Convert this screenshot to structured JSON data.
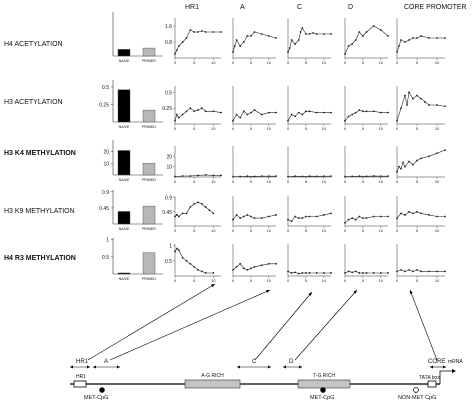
{
  "column_headers": [
    "HR1",
    "A",
    "C",
    "D",
    "CORE PROMOTER"
  ],
  "row_labels": [
    "H4 ACETYLATION",
    "H3 ACETYLATION",
    "H3 K4 METHYLATION",
    "H3 K9 METHYLATION",
    "H4 R3 METHYLATION"
  ],
  "row_label_bold": [
    false,
    false,
    true,
    false,
    true
  ],
  "bar_categories": [
    "NAIVE",
    "PRIMED"
  ],
  "colors": {
    "naive": "#000000",
    "primed": "#b8b8b8",
    "line": "#222222",
    "region": "#c4c4c4"
  },
  "chart_data": [
    {
      "type": "bar",
      "row": "H4 ACETYLATION",
      "categories": [
        "NAIVE",
        "PRIMED"
      ],
      "values": [
        0.15,
        0.18
      ],
      "ylim": [
        0,
        1.0
      ],
      "ytick_labels": []
    },
    {
      "type": "bar",
      "row": "H3 ACETYLATION",
      "categories": [
        "NAIVE",
        "PRIMED"
      ],
      "values": [
        0.46,
        0.17
      ],
      "ylim": [
        0,
        0.6
      ],
      "ytick_labels": [
        "0.5",
        "0.25"
      ],
      "yticks": [
        0.5,
        0.25
      ]
    },
    {
      "type": "bar",
      "row": "H3 K4 METHYLATION",
      "categories": [
        "NAIVE",
        "PRIMED"
      ],
      "values": [
        21,
        10
      ],
      "ylim": [
        0,
        30
      ],
      "ytick_labels": [
        "20",
        "10"
      ],
      "yticks": [
        20,
        10
      ]
    },
    {
      "type": "bar",
      "row": "H3 K9 METHYLATION",
      "categories": [
        "NAIVE",
        "PRIMED"
      ],
      "values": [
        0.35,
        0.5
      ],
      "ylim": [
        0,
        0.95
      ],
      "ytick_labels": [
        "0.9",
        "0.45"
      ],
      "yticks": [
        0.9,
        0.45
      ]
    },
    {
      "type": "bar",
      "row": "H4 R3 METHYLATION",
      "categories": [
        "NAIVE",
        "PRIMED"
      ],
      "values": [
        0.03,
        0.62
      ],
      "ylim": [
        0,
        1.05
      ],
      "ytick_labels": [
        "1",
        "0.5"
      ],
      "yticks": [
        1,
        0.5
      ]
    },
    {
      "type": "line",
      "row": "H4 ACETYLATION",
      "col": "HR1",
      "ylim": [
        0,
        2.0
      ],
      "ytick_labels": [
        "1.6",
        "0.8"
      ],
      "yticks": [
        1.6,
        0.8
      ],
      "x_ticks": [
        0,
        5,
        10
      ],
      "x": [
        0,
        0.5,
        1,
        2,
        3,
        4,
        5,
        6,
        7,
        8,
        10,
        12
      ],
      "y": [
        0.2,
        0.4,
        0.6,
        0.8,
        1.0,
        1.4,
        1.3,
        1.3,
        1.35,
        1.3,
        1.3,
        1.3
      ]
    },
    {
      "type": "line",
      "row": "H4 ACETYLATION",
      "col": "A",
      "ylim": [
        0,
        2.0
      ],
      "x_ticks": [
        0,
        5,
        10
      ],
      "x": [
        0,
        0.5,
        1,
        2,
        3,
        4,
        5,
        6,
        8,
        10,
        12
      ],
      "y": [
        0.3,
        0.6,
        0.9,
        0.6,
        0.8,
        1.1,
        1.1,
        1.3,
        1.2,
        1.1,
        1.0
      ]
    },
    {
      "type": "line",
      "row": "H4 ACETYLATION",
      "col": "C",
      "ylim": [
        0,
        2.0
      ],
      "x_ticks": [
        0,
        5,
        10
      ],
      "x": [
        0,
        0.5,
        1,
        2,
        3,
        3.5,
        4,
        5,
        6,
        7,
        8,
        10,
        12
      ],
      "y": [
        0.3,
        0.5,
        0.9,
        0.7,
        0.9,
        1.3,
        1.5,
        1.2,
        1.2,
        1.25,
        1.2,
        1.2,
        1.2
      ]
    },
    {
      "type": "line",
      "row": "H4 ACETYLATION",
      "col": "D",
      "ylim": [
        0,
        2.0
      ],
      "x_ticks": [
        0,
        5,
        10
      ],
      "x": [
        0,
        1,
        2,
        3,
        4,
        5,
        6,
        8,
        10,
        12
      ],
      "y": [
        0.2,
        0.6,
        0.7,
        0.9,
        1.3,
        1.1,
        1.3,
        1.6,
        1.4,
        1.1
      ]
    },
    {
      "type": "line",
      "row": "H4 ACETYLATION",
      "col": "CORE PROMOTER",
      "ylim": [
        0,
        2.0
      ],
      "x_ticks": [
        0,
        5,
        10
      ],
      "x": [
        0,
        0.5,
        1,
        2,
        3,
        4,
        5,
        6,
        8,
        10,
        12
      ],
      "y": [
        0.3,
        0.6,
        0.9,
        0.8,
        0.9,
        1.0,
        1.0,
        1.1,
        1.0,
        1.0,
        1.0
      ]
    },
    {
      "type": "line",
      "row": "H3 ACETYLATION",
      "col": "HR1",
      "ylim": [
        0,
        0.6
      ],
      "ytick_labels": [
        "0.5",
        "0.25"
      ],
      "yticks": [
        0.5,
        0.25
      ],
      "x_ticks": [
        0,
        5,
        10
      ],
      "x": [
        0,
        0.5,
        1,
        2,
        3,
        4,
        5,
        6,
        7,
        8,
        10,
        12
      ],
      "y": [
        0.05,
        0.15,
        0.1,
        0.15,
        0.2,
        0.25,
        0.2,
        0.22,
        0.25,
        0.2,
        0.2,
        0.18
      ]
    },
    {
      "type": "line",
      "row": "H3 ACETYLATION",
      "col": "A",
      "ylim": [
        0,
        0.6
      ],
      "x_ticks": [
        0,
        5,
        10
      ],
      "x": [
        0,
        1,
        2,
        3,
        4,
        5,
        6,
        8,
        10,
        12
      ],
      "y": [
        0.05,
        0.15,
        0.1,
        0.2,
        0.15,
        0.18,
        0.22,
        0.15,
        0.18,
        0.18
      ]
    },
    {
      "type": "line",
      "row": "H3 ACETYLATION",
      "col": "C",
      "ylim": [
        0,
        0.6
      ],
      "x_ticks": [
        0,
        5,
        10
      ],
      "x": [
        0,
        1,
        2,
        3,
        4,
        5,
        6,
        8,
        10,
        12
      ],
      "y": [
        0.05,
        0.15,
        0.12,
        0.18,
        0.15,
        0.2,
        0.2,
        0.18,
        0.18,
        0.18
      ]
    },
    {
      "type": "line",
      "row": "H3 ACETYLATION",
      "col": "D",
      "ylim": [
        0,
        0.6
      ],
      "x_ticks": [
        0,
        5,
        10
      ],
      "x": [
        0,
        1,
        2,
        3,
        4,
        5,
        6,
        8,
        10,
        12
      ],
      "y": [
        0.05,
        0.12,
        0.15,
        0.18,
        0.22,
        0.2,
        0.2,
        0.2,
        0.18,
        0.18
      ]
    },
    {
      "type": "line",
      "row": "H3 ACETYLATION",
      "col": "CORE PROMOTER",
      "ylim": [
        0,
        0.6
      ],
      "x_ticks": [
        0,
        5,
        10
      ],
      "x": [
        0,
        1,
        2,
        2.5,
        3,
        4,
        5,
        6,
        7,
        8,
        10,
        12
      ],
      "y": [
        0.05,
        0.25,
        0.45,
        0.3,
        0.5,
        0.4,
        0.45,
        0.4,
        0.35,
        0.3,
        0.3,
        0.28
      ]
    },
    {
      "type": "line",
      "row": "H3 K4 METHYLATION",
      "col": "HR1",
      "ylim": [
        0,
        30
      ],
      "ytick_labels": [
        "20",
        "10"
      ],
      "yticks": [
        20,
        10
      ],
      "x_ticks": [
        0,
        5,
        10
      ],
      "x": [
        0,
        2,
        4,
        6,
        8,
        10,
        12
      ],
      "y": [
        0.5,
        1,
        1,
        1.5,
        2,
        1.5,
        1.5
      ]
    },
    {
      "type": "line",
      "row": "H3 K4 METHYLATION",
      "col": "A",
      "ylim": [
        0,
        30
      ],
      "x_ticks": [
        0,
        5,
        10
      ],
      "x": [
        0,
        2,
        4,
        6,
        8,
        10,
        12
      ],
      "y": [
        0.5,
        0.5,
        0.8,
        0.6,
        0.8,
        0.8,
        0.8
      ]
    },
    {
      "type": "line",
      "row": "H3 K4 METHYLATION",
      "col": "C",
      "ylim": [
        0,
        30
      ],
      "x_ticks": [
        0,
        5,
        10
      ],
      "x": [
        0,
        2,
        4,
        6,
        8,
        10,
        12
      ],
      "y": [
        0.5,
        0.8,
        0.6,
        0.8,
        0.7,
        0.8,
        0.8
      ]
    },
    {
      "type": "line",
      "row": "H3 K4 METHYLATION",
      "col": "D",
      "ylim": [
        0,
        30
      ],
      "x_ticks": [
        0,
        5,
        10
      ],
      "x": [
        0,
        2,
        4,
        6,
        8,
        10,
        12
      ],
      "y": [
        0.5,
        0.6,
        0.8,
        0.7,
        0.9,
        0.8,
        0.8
      ]
    },
    {
      "type": "line",
      "row": "H3 K4 METHYLATION",
      "col": "CORE PROMOTER",
      "ylim": [
        0,
        30
      ],
      "x_ticks": [
        0,
        5,
        10
      ],
      "x": [
        0,
        0.5,
        1,
        1.5,
        2,
        3,
        4,
        5,
        6,
        8,
        10,
        12
      ],
      "y": [
        5,
        10,
        8,
        14,
        10,
        15,
        12,
        16,
        18,
        20,
        23,
        26
      ]
    },
    {
      "type": "line",
      "row": "H3 K9 METHYLATION",
      "col": "HR1",
      "ylim": [
        0,
        0.95
      ],
      "ytick_labels": [
        "0.9",
        "0.45"
      ],
      "yticks": [
        0.9,
        0.45
      ],
      "x_ticks": [
        0,
        5,
        10
      ],
      "x": [
        0,
        0.5,
        1,
        2,
        3,
        4,
        5,
        6,
        7,
        8,
        9,
        10
      ],
      "y": [
        0.3,
        0.35,
        0.3,
        0.4,
        0.4,
        0.6,
        0.7,
        0.75,
        0.7,
        0.6,
        0.5,
        0.4
      ]
    },
    {
      "type": "line",
      "row": "H3 K9 METHYLATION",
      "col": "A",
      "ylim": [
        0,
        0.95
      ],
      "x_ticks": [
        0,
        5,
        10
      ],
      "x": [
        0,
        1,
        2,
        3,
        4,
        5,
        6,
        8,
        10,
        12
      ],
      "y": [
        0.2,
        0.35,
        0.25,
        0.3,
        0.35,
        0.3,
        0.25,
        0.25,
        0.3,
        0.35
      ]
    },
    {
      "type": "line",
      "row": "H3 K9 METHYLATION",
      "col": "C",
      "ylim": [
        0,
        0.95
      ],
      "x_ticks": [
        0,
        5,
        10
      ],
      "x": [
        0,
        1,
        2,
        3,
        4,
        5,
        6,
        8,
        10,
        12
      ],
      "y": [
        0.2,
        0.15,
        0.3,
        0.25,
        0.25,
        0.3,
        0.3,
        0.3,
        0.35,
        0.4
      ]
    },
    {
      "type": "line",
      "row": "H3 K9 METHYLATION",
      "col": "D",
      "ylim": [
        0,
        0.95
      ],
      "x_ticks": [
        0,
        5,
        10
      ],
      "x": [
        0,
        1,
        2,
        3,
        4,
        5,
        6,
        8,
        10,
        12
      ],
      "y": [
        0.1,
        0.2,
        0.25,
        0.2,
        0.3,
        0.25,
        0.25,
        0.3,
        0.3,
        0.3
      ]
    },
    {
      "type": "line",
      "row": "H3 K9 METHYLATION",
      "col": "CORE PROMOTER",
      "ylim": [
        0,
        0.95
      ],
      "x_ticks": [
        0,
        5,
        10
      ],
      "x": [
        0,
        1,
        2,
        3,
        4,
        5,
        6,
        8,
        10,
        12
      ],
      "y": [
        0.25,
        0.4,
        0.35,
        0.45,
        0.4,
        0.45,
        0.4,
        0.35,
        0.3,
        0.3
      ]
    },
    {
      "type": "line",
      "row": "H4 R3 METHYLATION",
      "col": "HR1",
      "ylim": [
        0,
        1.05
      ],
      "ytick_labels": [
        "1",
        "0.5"
      ],
      "yticks": [
        1,
        0.5
      ],
      "x_ticks": [
        0,
        5,
        10
      ],
      "x": [
        0,
        0.5,
        1,
        2,
        3,
        4,
        5,
        6,
        7,
        8,
        10
      ],
      "y": [
        0.8,
        0.9,
        0.85,
        0.6,
        0.5,
        0.4,
        0.3,
        0.2,
        0.15,
        0.1,
        0.1
      ]
    },
    {
      "type": "line",
      "row": "H4 R3 METHYLATION",
      "col": "A",
      "ylim": [
        0,
        1.05
      ],
      "x_ticks": [
        0,
        5,
        10
      ],
      "x": [
        0,
        1,
        2,
        3,
        4,
        5,
        6,
        8,
        10,
        12
      ],
      "y": [
        0.2,
        0.3,
        0.4,
        0.25,
        0.2,
        0.25,
        0.3,
        0.35,
        0.4,
        0.4
      ]
    },
    {
      "type": "line",
      "row": "H4 R3 METHYLATION",
      "col": "C",
      "ylim": [
        0,
        1.05
      ],
      "x_ticks": [
        0,
        5,
        10
      ],
      "x": [
        0,
        1,
        2,
        3,
        4,
        5,
        6,
        8,
        10,
        12
      ],
      "y": [
        0.15,
        0.1,
        0.12,
        0.08,
        0.1,
        0.1,
        0.1,
        0.1,
        0.1,
        0.1
      ]
    },
    {
      "type": "line",
      "row": "H4 R3 METHYLATION",
      "col": "D",
      "ylim": [
        0,
        1.05
      ],
      "x_ticks": [
        0,
        5,
        10
      ],
      "x": [
        0,
        1,
        2,
        3,
        4,
        5,
        6,
        8,
        10,
        12
      ],
      "y": [
        0.1,
        0.15,
        0.12,
        0.15,
        0.1,
        0.1,
        0.1,
        0.1,
        0.1,
        0.1
      ]
    },
    {
      "type": "line",
      "row": "H4 R3 METHYLATION",
      "col": "CORE PROMOTER",
      "ylim": [
        0,
        1.05
      ],
      "x_ticks": [
        0,
        5,
        10
      ],
      "x": [
        0,
        1,
        2,
        3,
        4,
        5,
        6,
        8,
        10,
        12
      ],
      "y": [
        0.15,
        0.2,
        0.15,
        0.2,
        0.15,
        0.2,
        0.15,
        0.15,
        0.15,
        0.15
      ]
    }
  ],
  "gene_map": {
    "segments": [
      {
        "label": "HR1"
      },
      {
        "label": "A"
      },
      {
        "label": "C"
      },
      {
        "label": "D"
      },
      {
        "label": "CORE"
      }
    ],
    "rich_regions": [
      {
        "label": "A-G RICH"
      },
      {
        "label": "T-G RICH"
      }
    ],
    "hr1_box_label": "HR1",
    "tata_label": "TATA box",
    "mrna_label": "mRNA",
    "cpg_sites": [
      {
        "label": "MET-CpG",
        "methylated": true
      },
      {
        "label": "MET-CpG",
        "methylated": true
      },
      {
        "label": "NON-MET CpG",
        "methylated": false
      }
    ]
  }
}
